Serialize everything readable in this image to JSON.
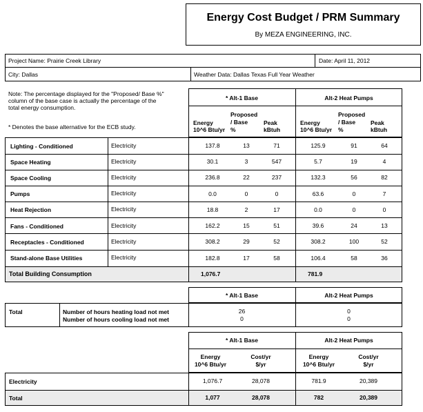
{
  "header": {
    "title": "Energy Cost Budget / PRM Summary",
    "subtitle": "By MEZA ENGINEERING, INC."
  },
  "project": {
    "name": "Project Name: Prairie Creek Library",
    "date": "Date:  April 11, 2012",
    "city": "City: Dallas",
    "weather": "Weather Data: Dallas Texas Full Year Weather"
  },
  "notes": {
    "note": "Note: The percentage displayed for the \"Proposed/ Base %\" column of the base case is actually the percentage of the total energy consumption.",
    "note_lines": [
      "Note: The percentage displayed for the \"Proposed/ Base %\"",
      "column of the base case is actually the percentage of the",
      "total energy consumption."
    ],
    "base_note": "* Denotes the base alternative for the ECB study."
  },
  "alternatives": {
    "alt1": "* Alt-1 Base",
    "alt2": "Alt-2 Heat Pumps"
  },
  "column_headers": {
    "energy": [
      "Energy",
      "10^6 Btu/yr"
    ],
    "proposed": [
      "Proposed",
      "/ Base",
      "%"
    ],
    "peak": [
      "Peak",
      "kBtuh"
    ]
  },
  "end_uses": [
    {
      "name": "Lighting - Conditioned",
      "fuel": "Electricity",
      "alt1": [
        "137.8",
        "13",
        "71"
      ],
      "alt2": [
        "125.9",
        "91",
        "64"
      ]
    },
    {
      "name": "Space Heating",
      "fuel": "Electricity",
      "alt1": [
        "30.1",
        "3",
        "547"
      ],
      "alt2": [
        "5.7",
        "19",
        "4"
      ]
    },
    {
      "name": "Space Cooling",
      "fuel": "Electricity",
      "alt1": [
        "236.8",
        "22",
        "237"
      ],
      "alt2": [
        "132.3",
        "56",
        "82"
      ]
    },
    {
      "name": "Pumps",
      "fuel": "Electricity",
      "alt1": [
        "0.0",
        "0",
        "0"
      ],
      "alt2": [
        "63.6",
        "0",
        "7"
      ]
    },
    {
      "name": "Heat Rejection",
      "fuel": "Electricity",
      "alt1": [
        "18.8",
        "2",
        "17"
      ],
      "alt2": [
        "0.0",
        "0",
        "0"
      ]
    },
    {
      "name": "Fans - Conditioned",
      "fuel": "Electricity",
      "alt1": [
        "162.2",
        "15",
        "51"
      ],
      "alt2": [
        "39.6",
        "24",
        "13"
      ]
    },
    {
      "name": "Receptacles - Conditioned",
      "fuel": "Electricity",
      "alt1": [
        "308.2",
        "29",
        "52"
      ],
      "alt2": [
        "308.2",
        "100",
        "52"
      ]
    },
    {
      "name": "Stand-alone Base Utilities",
      "fuel": "Electricity",
      "alt1": [
        "182.8",
        "17",
        "58"
      ],
      "alt2": [
        "106.4",
        "58",
        "36"
      ]
    }
  ],
  "total_building": {
    "label": "Total Building Consumption",
    "alt1": "1,076.7",
    "alt2": "781.9"
  },
  "unmet": {
    "label": "Total",
    "heating_label": "Number of hours heating load not met",
    "cooling_label": "Number of hours cooling load not met",
    "alt1": [
      "26",
      "0"
    ],
    "alt2": [
      "0",
      "0"
    ]
  },
  "cost": {
    "energy_header": [
      "Energy",
      "10^6 Btu/yr"
    ],
    "cost_header": [
      "Cost/yr",
      "$/yr"
    ],
    "rows": [
      {
        "name": "Electricity",
        "alt1": [
          "1,076.7",
          "28,078"
        ],
        "alt2": [
          "781.9",
          "20,389"
        ]
      }
    ],
    "total": {
      "name": "Total",
      "alt1": [
        "1,077",
        "28,078"
      ],
      "alt2": [
        "782",
        "20,389"
      ]
    }
  }
}
